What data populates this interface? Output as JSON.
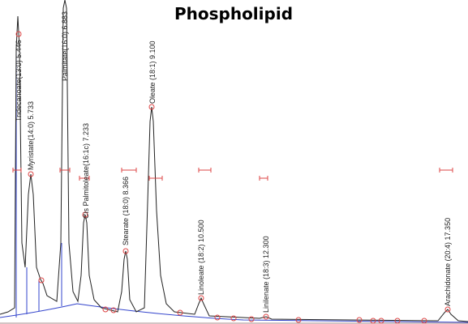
{
  "title": "Phospholipid",
  "peaks": [
    {
      "label": "Tridecanoate(13:0) 5.446"
    },
    {
      "label": "Myristate(14:0) 5.733"
    },
    {
      "label": "Palmitate(16:0) 6.883"
    },
    {
      "label": "Cis Palmitoleate(16:1c) 7.233"
    },
    {
      "label": "Stearate (18:0) 8.366"
    },
    {
      "label": "Oleate (18:1) 9.100"
    },
    {
      "label": "Linoleate (18:2) 10.500"
    },
    {
      "label": "Linilenate (18:3) 12.300"
    },
    {
      "label": "Arachidonate (20:4) 17.350"
    }
  ]
}
